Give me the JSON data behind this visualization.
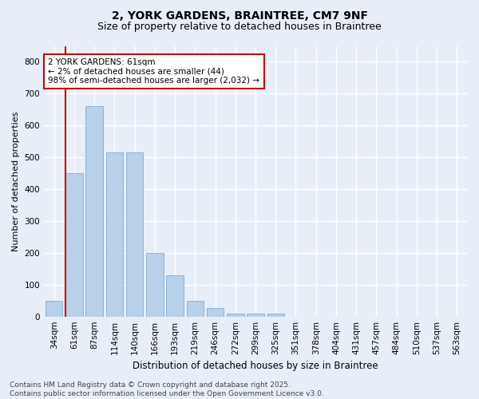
{
  "title_line1": "2, YORK GARDENS, BRAINTREE, CM7 9NF",
  "title_line2": "Size of property relative to detached houses in Braintree",
  "xlabel": "Distribution of detached houses by size in Braintree",
  "ylabel": "Number of detached properties",
  "categories": [
    "34sqm",
    "61sqm",
    "87sqm",
    "114sqm",
    "140sqm",
    "166sqm",
    "193sqm",
    "219sqm",
    "246sqm",
    "272sqm",
    "299sqm",
    "325sqm",
    "351sqm",
    "378sqm",
    "404sqm",
    "431sqm",
    "457sqm",
    "484sqm",
    "510sqm",
    "537sqm",
    "563sqm"
  ],
  "values": [
    50,
    450,
    660,
    515,
    515,
    200,
    130,
    50,
    28,
    8,
    8,
    8,
    0,
    0,
    0,
    0,
    0,
    0,
    0,
    0,
    0
  ],
  "bar_color": "#b8d0e8",
  "bar_edge_color": "#7aadd4",
  "highlight_bar_index": 1,
  "highlight_line_color": "#cc0000",
  "ylim": [
    0,
    850
  ],
  "yticks": [
    0,
    100,
    200,
    300,
    400,
    500,
    600,
    700,
    800
  ],
  "annotation_text": "2 YORK GARDENS: 61sqm\n← 2% of detached houses are smaller (44)\n98% of semi-detached houses are larger (2,032) →",
  "annotation_box_facecolor": "#ffffff",
  "annotation_box_edgecolor": "#cc0000",
  "footer_line1": "Contains HM Land Registry data © Crown copyright and database right 2025.",
  "footer_line2": "Contains public sector information licensed under the Open Government Licence v3.0.",
  "background_color": "#e8eef8",
  "grid_color": "#ffffff",
  "title_fontsize": 10,
  "subtitle_fontsize": 9,
  "ylabel_fontsize": 8,
  "xlabel_fontsize": 8.5,
  "tick_fontsize": 7.5,
  "annotation_fontsize": 7.5,
  "footer_fontsize": 6.5
}
